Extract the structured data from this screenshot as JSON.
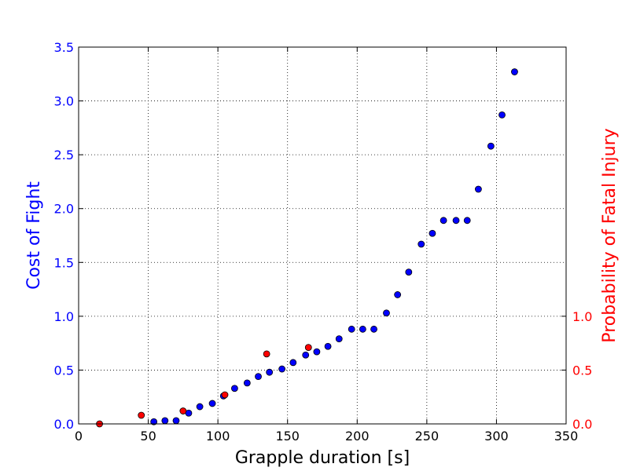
{
  "chart_data": {
    "type": "scatter",
    "xlabel": "Grapple duration [s]",
    "ylabel": "Cost of Fight",
    "ylabel_right": "Probability of Fatal Injury",
    "xlim": [
      0,
      350
    ],
    "ylim": [
      0,
      3.5
    ],
    "ylim_right": [
      0,
      3.5
    ],
    "grid": true,
    "x_ticks": [
      0,
      50,
      100,
      150,
      200,
      250,
      300,
      350
    ],
    "x_tick_labels": [
      "0",
      "50",
      "100",
      "150",
      "200",
      "250",
      "300",
      "350"
    ],
    "y_ticks": [
      0,
      0.5,
      1,
      1.5,
      2,
      2.5,
      3,
      3.5
    ],
    "y_tick_labels": [
      "0.0",
      "0.5",
      "1.0",
      "1.5",
      "2.0",
      "2.5",
      "3.0",
      "3.5"
    ],
    "y_right_ticks": [
      0,
      0.5,
      1
    ],
    "y_right_tick_labels": [
      "0.0",
      "0.5",
      "1.0"
    ],
    "colors": {
      "left_axis": "#0000ff",
      "right_axis": "#ff0000",
      "series_cost": "#0000ff",
      "series_fatal": "#ff0000",
      "grid": "#000000"
    },
    "series": [
      {
        "axis": "left",
        "color": "#0000ff",
        "x": [
          54,
          62,
          70,
          79,
          87,
          96,
          104,
          112,
          121,
          129,
          137,
          146,
          154,
          163,
          171,
          179,
          187,
          196,
          204,
          212,
          221,
          229,
          237,
          246,
          254,
          262,
          271,
          279,
          287,
          296,
          304,
          313
        ],
        "y": [
          0.02,
          0.03,
          0.03,
          0.1,
          0.16,
          0.19,
          0.26,
          0.33,
          0.38,
          0.44,
          0.48,
          0.51,
          0.57,
          0.64,
          0.67,
          0.72,
          0.79,
          0.88,
          0.88,
          0.88,
          1.03,
          1.2,
          1.41,
          1.67,
          1.77,
          1.89,
          1.89,
          1.89,
          2.18,
          2.58,
          2.87,
          3.27
        ]
      },
      {
        "axis": "right",
        "color": "#ff0000",
        "x": [
          15,
          45,
          75,
          105,
          135,
          165
        ],
        "y": [
          0.0,
          0.08,
          0.12,
          0.27,
          0.65,
          0.71
        ]
      }
    ]
  }
}
